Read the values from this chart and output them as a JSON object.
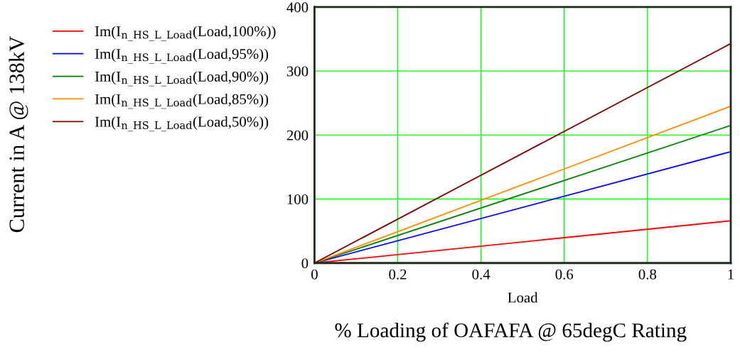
{
  "chart_data": {
    "type": "line",
    "xlabel": "Load",
    "annotations": [
      "% Loading of OAFAFA @ 65degC Rating",
      "Current in A @ 138kV"
    ],
    "x": [
      0,
      1
    ],
    "series": [
      {
        "name": "Im(I$_{n_HS_L_Load}$(Load,100%))",
        "color": "#ff0000",
        "values": [
          0,
          66
        ]
      },
      {
        "name": "Im(I$_{n_HS_L_Load}$(Load,95%))",
        "color": "#0000ff",
        "values": [
          0,
          174
        ]
      },
      {
        "name": "Im(I$_{n_HS_L_Load}$(Load,90%))",
        "color": "#008000",
        "values": [
          0,
          215
        ]
      },
      {
        "name": "Im(I$_{n_HS_L_Load}$(Load,85%))",
        "color": "#ff8c00",
        "values": [
          0,
          245
        ]
      },
      {
        "name": "Im(I$_{n_HS_L_Load}$(Load,50%))",
        "color": "#800000",
        "values": [
          0,
          343
        ]
      }
    ],
    "xlim": [
      0,
      1
    ],
    "xticks": [
      0,
      0.2,
      0.4,
      0.6,
      0.8,
      1
    ],
    "ylim": [
      0,
      400
    ],
    "yticks": [
      0,
      100,
      200,
      300,
      400
    ],
    "grid": true,
    "legend": "left",
    "marker": "none",
    "line_style": "solid"
  }
}
